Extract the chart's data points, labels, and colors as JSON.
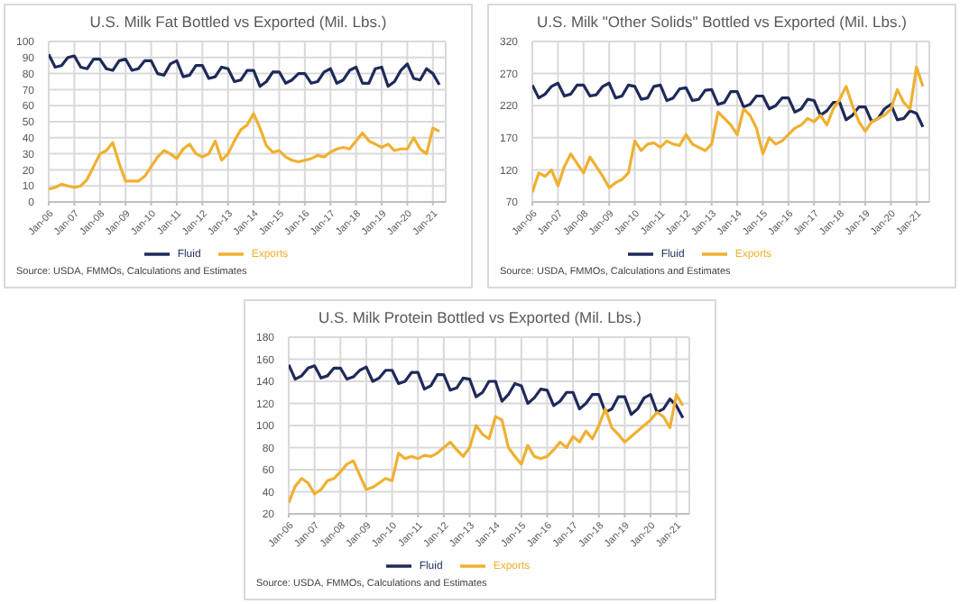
{
  "chart_data": [
    {
      "type": "line",
      "title": "U.S. Milk Fat Bottled vs Exported (Mil. Lbs.)",
      "annotations": [
        "Source: USDA, FMMOs, Calculations and Estimates"
      ],
      "x": [
        "2006-01",
        "2006-04",
        "2006-07",
        "2006-10",
        "2007-01",
        "2007-04",
        "2007-07",
        "2007-10",
        "2008-01",
        "2008-04",
        "2008-07",
        "2008-10",
        "2009-01",
        "2009-04",
        "2009-07",
        "2009-10",
        "2010-01",
        "2010-04",
        "2010-07",
        "2010-10",
        "2011-01",
        "2011-04",
        "2011-07",
        "2011-10",
        "2012-01",
        "2012-04",
        "2012-07",
        "2012-10",
        "2013-01",
        "2013-04",
        "2013-07",
        "2013-10",
        "2014-01",
        "2014-04",
        "2014-07",
        "2014-10",
        "2015-01",
        "2015-04",
        "2015-07",
        "2015-10",
        "2016-01",
        "2016-04",
        "2016-07",
        "2016-10",
        "2017-01",
        "2017-04",
        "2017-07",
        "2017-10",
        "2018-01",
        "2018-04",
        "2018-07",
        "2018-10",
        "2019-01",
        "2019-04",
        "2019-07",
        "2019-10",
        "2020-01",
        "2020-04",
        "2020-07",
        "2020-10",
        "2021-01",
        "2021-04"
      ],
      "series": [
        {
          "name": "Fluid",
          "color": "#1f2a5a",
          "values": [
            92,
            84,
            85,
            90,
            91,
            84,
            83,
            89,
            89,
            83,
            82,
            88,
            89,
            82,
            83,
            88,
            88,
            80,
            79,
            86,
            88,
            78,
            79,
            85,
            85,
            77,
            78,
            84,
            83,
            75,
            76,
            82,
            82,
            72,
            75,
            81,
            81,
            74,
            76,
            80,
            80,
            74,
            75,
            81,
            83,
            74,
            76,
            82,
            84,
            74,
            74,
            83,
            84,
            72,
            75,
            82,
            86,
            77,
            76,
            83,
            80,
            73
          ]
        },
        {
          "name": "Exports",
          "color": "#f0b030",
          "values": [
            8,
            9,
            11,
            10,
            9,
            10,
            14,
            22,
            30,
            32,
            37,
            24,
            13,
            13,
            13,
            16,
            22,
            28,
            32,
            30,
            27,
            33,
            36,
            30,
            28,
            30,
            38,
            26,
            30,
            38,
            45,
            48,
            55,
            46,
            35,
            31,
            32,
            28,
            26,
            25,
            26,
            27,
            29,
            28,
            31,
            33,
            34,
            33,
            38,
            43,
            38,
            36,
            34,
            36,
            32,
            33,
            33,
            40,
            33,
            30,
            46,
            44
          ]
        }
      ],
      "xlim": [
        "2006-01",
        "2021-07"
      ],
      "xticks": [
        {
          "value": "2006-01",
          "label": "Jan-06"
        },
        {
          "value": "2007-01",
          "label": "Jan-07"
        },
        {
          "value": "2008-01",
          "label": "Jan-08"
        },
        {
          "value": "2009-01",
          "label": "Jan-09"
        },
        {
          "value": "2010-01",
          "label": "Jan-10"
        },
        {
          "value": "2011-01",
          "label": "Jan-11"
        },
        {
          "value": "2012-01",
          "label": "Jan-12"
        },
        {
          "value": "2013-01",
          "label": "Jan-13"
        },
        {
          "value": "2014-01",
          "label": "Jan-14"
        },
        {
          "value": "2015-01",
          "label": "Jan-15"
        },
        {
          "value": "2016-01",
          "label": "Jan-16"
        },
        {
          "value": "2017-01",
          "label": "Jan-17"
        },
        {
          "value": "2018-01",
          "label": "Jan-18"
        },
        {
          "value": "2019-01",
          "label": "Jan-19"
        },
        {
          "value": "2020-01",
          "label": "Jan-20"
        },
        {
          "value": "2021-01",
          "label": "Jan-21"
        }
      ],
      "ylim": [
        0,
        100
      ],
      "yticks": [
        0,
        10,
        20,
        30,
        40,
        50,
        60,
        70,
        80,
        90,
        100
      ],
      "grid": true,
      "legend": "bottom",
      "marker": "none"
    },
    {
      "type": "line",
      "title": "U.S. Milk \"Other Solids\" Bottled vs Exported  (Mil. Lbs.)",
      "annotations": [
        "Source: USDA, FMMOs, Calculations and Estimates"
      ],
      "x": [
        "2006-01",
        "2006-04",
        "2006-07",
        "2006-10",
        "2007-01",
        "2007-04",
        "2007-07",
        "2007-10",
        "2008-01",
        "2008-04",
        "2008-07",
        "2008-10",
        "2009-01",
        "2009-04",
        "2009-07",
        "2009-10",
        "2010-01",
        "2010-04",
        "2010-07",
        "2010-10",
        "2011-01",
        "2011-04",
        "2011-07",
        "2011-10",
        "2012-01",
        "2012-04",
        "2012-07",
        "2012-10",
        "2013-01",
        "2013-04",
        "2013-07",
        "2013-10",
        "2014-01",
        "2014-04",
        "2014-07",
        "2014-10",
        "2015-01",
        "2015-04",
        "2015-07",
        "2015-10",
        "2016-01",
        "2016-04",
        "2016-07",
        "2016-10",
        "2017-01",
        "2017-04",
        "2017-07",
        "2017-10",
        "2018-01",
        "2018-04",
        "2018-07",
        "2018-10",
        "2019-01",
        "2019-04",
        "2019-07",
        "2019-10",
        "2020-01",
        "2020-04",
        "2020-07",
        "2020-10",
        "2021-01",
        "2021-04"
      ],
      "series": [
        {
          "name": "Fluid",
          "color": "#1f2a5a",
          "values": [
            252,
            232,
            238,
            250,
            255,
            235,
            238,
            252,
            252,
            235,
            237,
            250,
            255,
            232,
            235,
            252,
            250,
            230,
            232,
            250,
            252,
            228,
            232,
            246,
            248,
            228,
            230,
            244,
            245,
            222,
            225,
            242,
            242,
            218,
            222,
            235,
            235,
            215,
            220,
            232,
            232,
            210,
            215,
            230,
            228,
            205,
            212,
            225,
            225,
            198,
            205,
            218,
            218,
            195,
            200,
            215,
            222,
            198,
            200,
            212,
            208,
            187
          ]
        },
        {
          "name": "Exports",
          "color": "#f0b030",
          "values": [
            85,
            115,
            110,
            120,
            95,
            125,
            145,
            130,
            115,
            140,
            125,
            110,
            92,
            100,
            105,
            115,
            165,
            150,
            160,
            162,
            155,
            165,
            160,
            158,
            175,
            160,
            155,
            150,
            160,
            210,
            200,
            190,
            175,
            215,
            205,
            185,
            145,
            170,
            160,
            165,
            175,
            185,
            190,
            200,
            195,
            205,
            190,
            215,
            230,
            250,
            220,
            195,
            180,
            195,
            200,
            205,
            215,
            245,
            225,
            215,
            280,
            250
          ]
        }
      ],
      "xlim": [
        "2006-01",
        "2021-07"
      ],
      "xticks": [
        {
          "value": "2006-01",
          "label": "Jan-06"
        },
        {
          "value": "2007-01",
          "label": "Jan-07"
        },
        {
          "value": "2008-01",
          "label": "Jan-08"
        },
        {
          "value": "2009-01",
          "label": "Jan-09"
        },
        {
          "value": "2010-01",
          "label": "Jan-10"
        },
        {
          "value": "2011-01",
          "label": "Jan-11"
        },
        {
          "value": "2012-01",
          "label": "Jan-12"
        },
        {
          "value": "2013-01",
          "label": "Jan-13"
        },
        {
          "value": "2014-01",
          "label": "Jan-14"
        },
        {
          "value": "2015-01",
          "label": "Jan-15"
        },
        {
          "value": "2016-01",
          "label": "Jan-16"
        },
        {
          "value": "2017-01",
          "label": "Jan-17"
        },
        {
          "value": "2018-01",
          "label": "Jan-18"
        },
        {
          "value": "2019-01",
          "label": "Jan-19"
        },
        {
          "value": "2020-01",
          "label": "Jan-20"
        },
        {
          "value": "2021-01",
          "label": "Jan-21"
        }
      ],
      "ylim": [
        70,
        320
      ],
      "yticks": [
        70,
        120,
        170,
        220,
        270,
        320
      ],
      "grid": true,
      "legend": "bottom",
      "marker": "none"
    },
    {
      "type": "line",
      "title": "U.S. Milk Protein Bottled vs Exported (Mil. Lbs.)",
      "annotations": [
        "Source: USDA, FMMOs, Calculations and Estimates"
      ],
      "x": [
        "2006-01",
        "2006-04",
        "2006-07",
        "2006-10",
        "2007-01",
        "2007-04",
        "2007-07",
        "2007-10",
        "2008-01",
        "2008-04",
        "2008-07",
        "2008-10",
        "2009-01",
        "2009-04",
        "2009-07",
        "2009-10",
        "2010-01",
        "2010-04",
        "2010-07",
        "2010-10",
        "2011-01",
        "2011-04",
        "2011-07",
        "2011-10",
        "2012-01",
        "2012-04",
        "2012-07",
        "2012-10",
        "2013-01",
        "2013-04",
        "2013-07",
        "2013-10",
        "2014-01",
        "2014-04",
        "2014-07",
        "2014-10",
        "2015-01",
        "2015-04",
        "2015-07",
        "2015-10",
        "2016-01",
        "2016-04",
        "2016-07",
        "2016-10",
        "2017-01",
        "2017-04",
        "2017-07",
        "2017-10",
        "2018-01",
        "2018-04",
        "2018-07",
        "2018-10",
        "2019-01",
        "2019-04",
        "2019-07",
        "2019-10",
        "2020-01",
        "2020-04",
        "2020-07",
        "2020-10",
        "2021-01",
        "2021-04"
      ],
      "series": [
        {
          "name": "Fluid",
          "color": "#1f2a5a",
          "values": [
            155,
            142,
            145,
            152,
            154,
            143,
            145,
            152,
            152,
            142,
            144,
            150,
            153,
            140,
            143,
            150,
            150,
            138,
            140,
            148,
            148,
            133,
            136,
            146,
            146,
            132,
            134,
            143,
            142,
            126,
            130,
            140,
            140,
            122,
            128,
            138,
            136,
            120,
            125,
            133,
            132,
            118,
            122,
            130,
            130,
            115,
            120,
            128,
            128,
            112,
            115,
            126,
            126,
            110,
            115,
            125,
            128,
            112,
            115,
            124,
            118,
            107
          ]
        },
        {
          "name": "Exports",
          "color": "#f0b030",
          "values": [
            30,
            45,
            52,
            48,
            38,
            42,
            50,
            52,
            58,
            65,
            68,
            55,
            42,
            44,
            48,
            52,
            50,
            75,
            70,
            72,
            70,
            73,
            72,
            75,
            80,
            85,
            78,
            72,
            80,
            100,
            92,
            88,
            108,
            105,
            80,
            72,
            65,
            82,
            72,
            70,
            72,
            78,
            85,
            80,
            90,
            85,
            95,
            88,
            100,
            115,
            98,
            92,
            85,
            90,
            95,
            100,
            105,
            112,
            108,
            98,
            128,
            118
          ]
        }
      ],
      "xlim": [
        "2006-01",
        "2021-07"
      ],
      "xticks": [
        {
          "value": "2006-01",
          "label": "Jan-06"
        },
        {
          "value": "2007-01",
          "label": "Jan-07"
        },
        {
          "value": "2008-01",
          "label": "Jan-08"
        },
        {
          "value": "2009-01",
          "label": "Jan-09"
        },
        {
          "value": "2010-01",
          "label": "Jan-10"
        },
        {
          "value": "2011-01",
          "label": "Jan-11"
        },
        {
          "value": "2012-01",
          "label": "Jan-12"
        },
        {
          "value": "2013-01",
          "label": "Jan-13"
        },
        {
          "value": "2014-01",
          "label": "Jan-14"
        },
        {
          "value": "2015-01",
          "label": "Jan-15"
        },
        {
          "value": "2016-01",
          "label": "Jan-16"
        },
        {
          "value": "2017-01",
          "label": "Jan-17"
        },
        {
          "value": "2018-01",
          "label": "Jan-18"
        },
        {
          "value": "2019-01",
          "label": "Jan-19"
        },
        {
          "value": "2020-01",
          "label": "Jan-20"
        },
        {
          "value": "2021-01",
          "label": "Jan-21"
        }
      ],
      "ylim": [
        20,
        180
      ],
      "yticks": [
        20,
        40,
        60,
        80,
        100,
        120,
        140,
        160,
        180
      ],
      "grid": true,
      "legend": "bottom",
      "marker": "none"
    }
  ]
}
